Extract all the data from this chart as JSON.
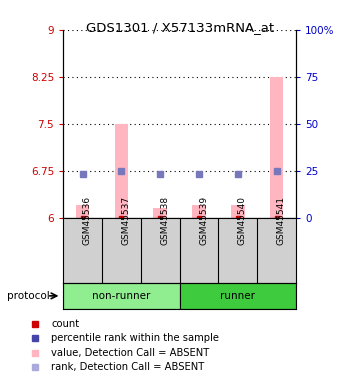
{
  "title": "GDS1301 / X57133mRNA_at",
  "samples": [
    "GSM45536",
    "GSM45537",
    "GSM45538",
    "GSM45539",
    "GSM45540",
    "GSM45541"
  ],
  "group_colors": {
    "non-runner": "#90EE90",
    "runner": "#3ECC3E"
  },
  "bar_bottom": 6.0,
  "bar_values": [
    6.2,
    7.5,
    6.15,
    6.2,
    6.2,
    8.25
  ],
  "rank_values": [
    6.7,
    6.75,
    6.7,
    6.7,
    6.7,
    6.75
  ],
  "bar_color": "#FFB6C1",
  "bar_base_color": "#CC0000",
  "rank_marker_color": "#7777BB",
  "ylim_left": [
    6,
    9
  ],
  "ylim_right": [
    0,
    100
  ],
  "yticks_left": [
    6,
    6.75,
    7.5,
    8.25,
    9
  ],
  "yticks_right": [
    0,
    25,
    50,
    75,
    100
  ],
  "ytick_labels_left": [
    "6",
    "6.75",
    "7.5",
    "8.25",
    "9"
  ],
  "ytick_labels_right": [
    "0",
    "25",
    "50",
    "75",
    "100%"
  ],
  "left_tick_color": "#CC0000",
  "right_tick_color": "#0000CC",
  "legend_items": [
    {
      "label": "count",
      "color": "#CC0000"
    },
    {
      "label": "percentile rank within the sample",
      "color": "#4444AA"
    },
    {
      "label": "value, Detection Call = ABSENT",
      "color": "#FFB6C1"
    },
    {
      "label": "rank, Detection Call = ABSENT",
      "color": "#AAAADD"
    }
  ]
}
